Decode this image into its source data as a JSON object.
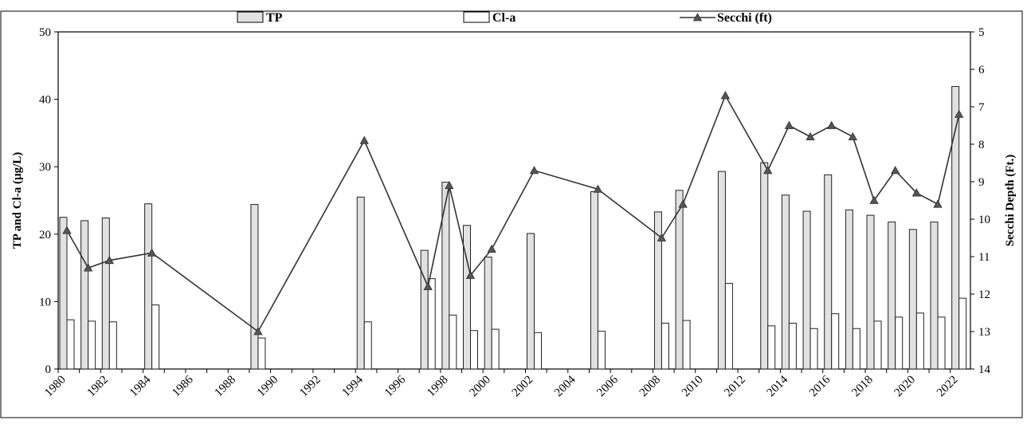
{
  "chart_data": {
    "type": "bar",
    "title": "",
    "xlabel": "",
    "ylabel": "TP and Cl-a (µg/L)",
    "ylabel_right": "Secchi Depth (Ft.)",
    "ylim": [
      0,
      50
    ],
    "ylim_right": [
      5,
      14
    ],
    "y_right_inverted": true,
    "xlim": [
      1980,
      2022
    ],
    "xlabels": [
      "1980",
      "1982",
      "1984",
      "1986",
      "1988",
      "1990",
      "1992",
      "1994",
      "1996",
      "1998",
      "2000",
      "2002",
      "2004",
      "2006",
      "2008",
      "2010",
      "2012",
      "2014",
      "2016",
      "2018",
      "2020",
      "2022"
    ],
    "yticks": [
      "0",
      "10",
      "20",
      "30",
      "40",
      "50"
    ],
    "yticks_right": [
      "5",
      "6",
      "7",
      "8",
      "9",
      "10",
      "11",
      "12",
      "13",
      "14"
    ],
    "legend_position": "top",
    "grid": false,
    "series": [
      {
        "name": "TP",
        "kind": "bar",
        "color": "#e1e1e1",
        "points": [
          [
            1980,
            22.5
          ],
          [
            1981,
            22.0
          ],
          [
            1982,
            22.4
          ],
          [
            1984,
            24.5
          ],
          [
            1989,
            24.4
          ],
          [
            1994,
            25.5
          ],
          [
            1997,
            17.6
          ],
          [
            1998,
            27.7
          ],
          [
            1999,
            21.3
          ],
          [
            2000,
            16.6
          ],
          [
            2002,
            20.1
          ],
          [
            2005,
            26.3
          ],
          [
            2008,
            23.3
          ],
          [
            2009,
            26.5
          ],
          [
            2011,
            29.3
          ],
          [
            2013,
            30.6
          ],
          [
            2014,
            25.8
          ],
          [
            2015,
            23.4
          ],
          [
            2016,
            28.8
          ],
          [
            2017,
            23.6
          ],
          [
            2018,
            22.8
          ],
          [
            2019,
            21.8
          ],
          [
            2020,
            20.7
          ],
          [
            2021,
            21.8
          ],
          [
            2022,
            41.9
          ]
        ]
      },
      {
        "name": "Cl-a",
        "kind": "bar",
        "color": "#ffffff",
        "points": [
          [
            1980,
            7.3
          ],
          [
            1981,
            7.1
          ],
          [
            1982,
            7.0
          ],
          [
            1984,
            9.5
          ],
          [
            1989,
            4.6
          ],
          [
            1994,
            7.0
          ],
          [
            1997,
            13.4
          ],
          [
            1998,
            8.0
          ],
          [
            1999,
            5.7
          ],
          [
            2000,
            5.9
          ],
          [
            2002,
            5.4
          ],
          [
            2005,
            5.6
          ],
          [
            2008,
            6.8
          ],
          [
            2009,
            7.2
          ],
          [
            2011,
            12.7
          ],
          [
            2013,
            6.4
          ],
          [
            2014,
            6.8
          ],
          [
            2015,
            6.0
          ],
          [
            2016,
            8.2
          ],
          [
            2017,
            6.0
          ],
          [
            2018,
            7.1
          ],
          [
            2019,
            7.7
          ],
          [
            2020,
            8.3
          ],
          [
            2021,
            7.7
          ],
          [
            2022,
            10.5
          ]
        ]
      },
      {
        "name": "Secchi (ft)",
        "kind": "line",
        "axis": "right",
        "color": "#333333",
        "points": [
          [
            1980.0,
            10.3
          ],
          [
            1981.0,
            11.3
          ],
          [
            1982.0,
            11.1
          ],
          [
            1984.0,
            10.9
          ],
          [
            1989.0,
            13.0
          ],
          [
            1994.0,
            7.9
          ],
          [
            1997.0,
            11.8
          ],
          [
            1998.0,
            9.1
          ],
          [
            1999.0,
            11.5
          ],
          [
            2000.0,
            10.8
          ],
          [
            2002.0,
            8.7
          ],
          [
            2005.0,
            9.2
          ],
          [
            2008.0,
            10.5
          ],
          [
            2009.0,
            9.6
          ],
          [
            2011.0,
            6.7
          ],
          [
            2013.0,
            8.7
          ],
          [
            2014.0,
            7.5
          ],
          [
            2015.0,
            7.8
          ],
          [
            2016.0,
            7.5
          ],
          [
            2017.0,
            7.8
          ],
          [
            2018.0,
            9.5
          ],
          [
            2019.0,
            8.7
          ],
          [
            2020.0,
            9.3
          ],
          [
            2021.0,
            9.6
          ],
          [
            2022.0,
            7.2
          ]
        ]
      }
    ]
  }
}
